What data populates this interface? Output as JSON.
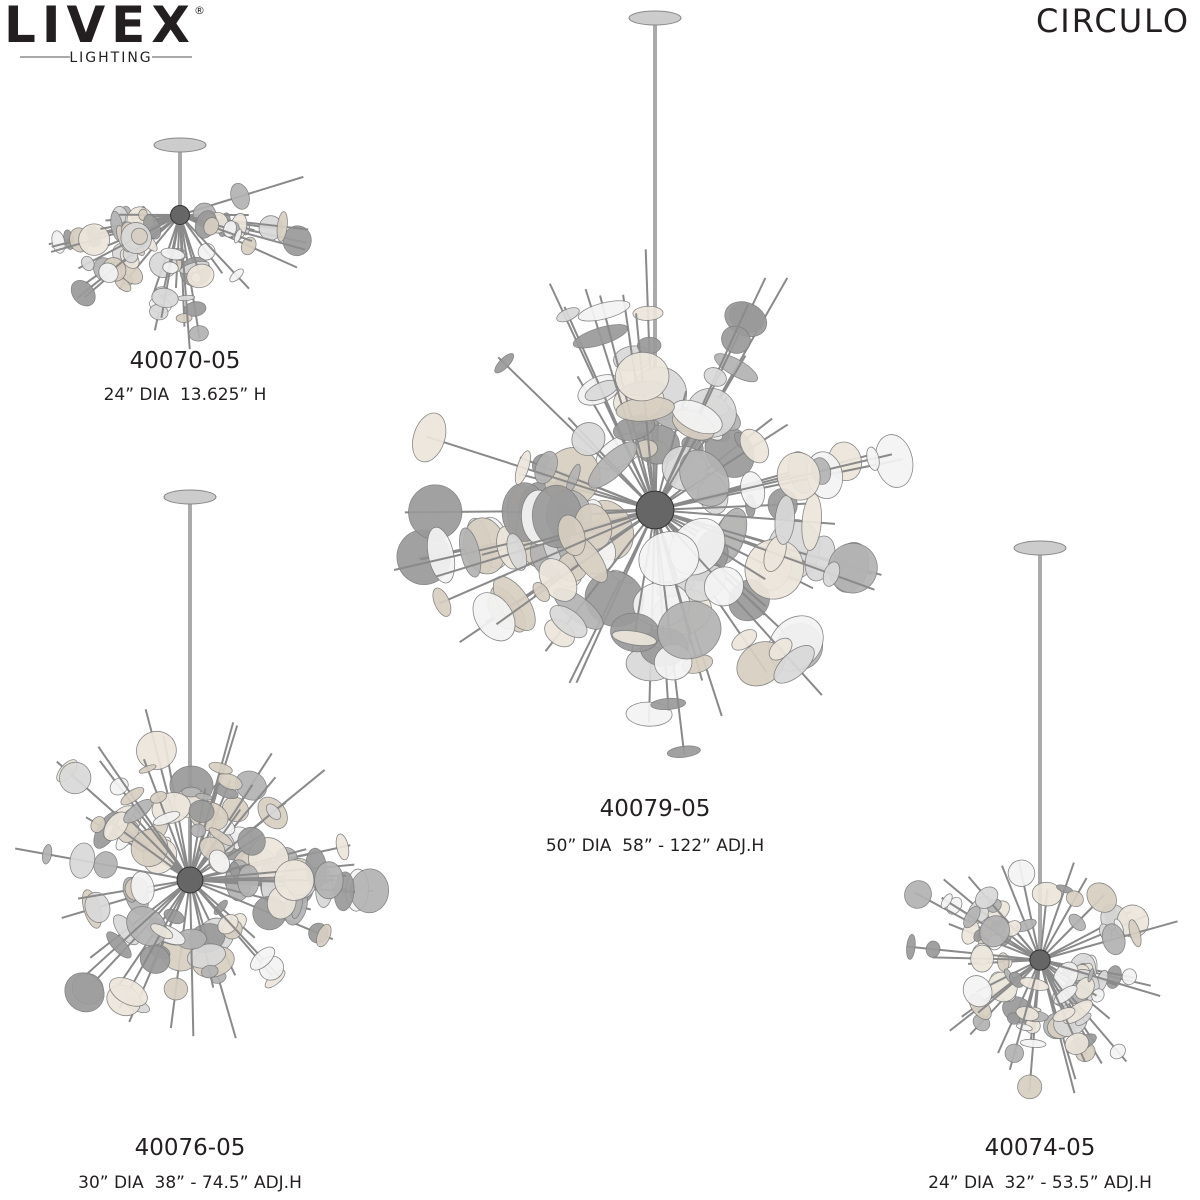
{
  "header": {
    "brand": "LIVEX",
    "brand_mark": "®",
    "brand_sub": "LIGHTING",
    "collection": "CIRCULO"
  },
  "products": [
    {
      "model": "40070-05",
      "dimensions": "24” DIA  13.625” H"
    },
    {
      "model": "40079-05",
      "dimensions": "50” DIA  58” - 122” ADJ.H"
    },
    {
      "model": "40076-05",
      "dimensions": "30” DIA  38” - 74.5” ADJ.H"
    },
    {
      "model": "40074-05",
      "dimensions": "24” DIA  32” - 53.5” ADJ.H"
    }
  ]
}
